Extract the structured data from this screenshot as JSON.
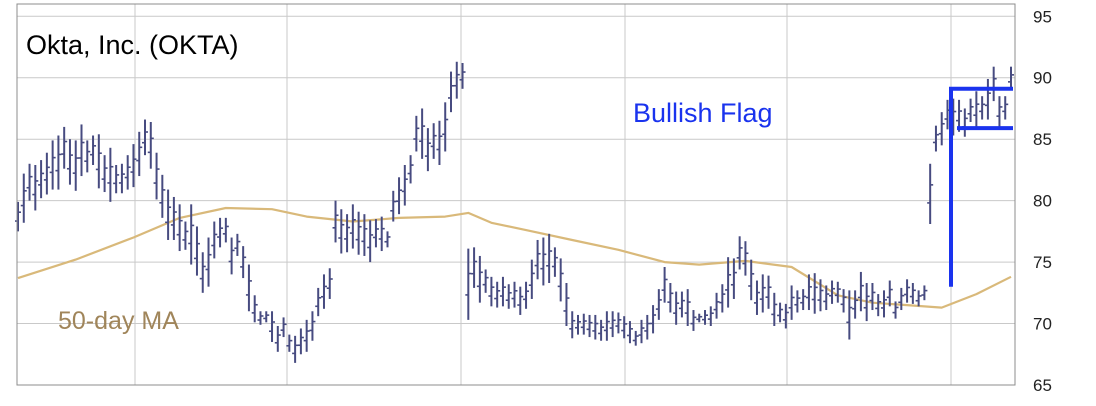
{
  "chart_data": {
    "type": "ohlc",
    "title": "Okta, Inc. (OKTA)",
    "y_axis": {
      "ticks": [
        65,
        70,
        75,
        80,
        85,
        90,
        95
      ],
      "ylim": [
        65,
        96
      ],
      "position": "right"
    },
    "grid": true,
    "num_bars": 173,
    "bars": [
      [
        77.5,
        79.9
      ],
      [
        78.2,
        82.2
      ],
      [
        80.0,
        83.0
      ],
      [
        79.2,
        82.9
      ],
      [
        80.2,
        83.3
      ],
      [
        80.5,
        83.9
      ],
      [
        80.9,
        84.9
      ],
      [
        80.9,
        85.3
      ],
      [
        82.6,
        86.0
      ],
      [
        81.3,
        85.0
      ],
      [
        80.8,
        84.9
      ],
      [
        82.0,
        86.2
      ],
      [
        82.3,
        84.9
      ],
      [
        82.9,
        85.3
      ],
      [
        81.0,
        85.4
      ],
      [
        80.7,
        83.7
      ],
      [
        79.9,
        84.3
      ],
      [
        80.6,
        82.9
      ],
      [
        80.6,
        83.0
      ],
      [
        80.9,
        83.7
      ],
      [
        81.1,
        84.6
      ],
      [
        82.0,
        85.6
      ],
      [
        83.7,
        86.6
      ],
      [
        82.6,
        86.4
      ],
      [
        80.1,
        83.9
      ],
      [
        78.6,
        82.1
      ],
      [
        76.8,
        80.9
      ],
      [
        76.8,
        80.3
      ],
      [
        75.9,
        79.7
      ],
      [
        76.0,
        78.3
      ],
      [
        74.8,
        79.7
      ],
      [
        73.9,
        77.9
      ],
      [
        72.5,
        75.8
      ],
      [
        73.0,
        77.0
      ],
      [
        75.3,
        78.3
      ],
      [
        76.2,
        78.6
      ],
      [
        76.6,
        78.6
      ],
      [
        74.0,
        77.0
      ],
      [
        75.5,
        77.3
      ],
      [
        73.7,
        76.3
      ],
      [
        71.0,
        74.8
      ],
      [
        70.1,
        72.3
      ],
      [
        69.9,
        71.0
      ],
      [
        70.1,
        71.0
      ],
      [
        68.5,
        71.0
      ],
      [
        67.7,
        69.8
      ],
      [
        68.9,
        70.5
      ],
      [
        67.7,
        69.1
      ],
      [
        66.8,
        69.0
      ],
      [
        67.5,
        69.6
      ],
      [
        67.7,
        70.3
      ],
      [
        68.6,
        71.0
      ],
      [
        70.6,
        72.9
      ],
      [
        71.2,
        74.0
      ],
      [
        72.0,
        74.5
      ],
      [
        76.6,
        80.0
      ],
      [
        75.7,
        79.3
      ],
      [
        75.8,
        78.9
      ],
      [
        76.1,
        79.7
      ],
      [
        75.6,
        79.1
      ],
      [
        75.5,
        78.9
      ],
      [
        75.0,
        78.4
      ],
      [
        76.2,
        78.5
      ],
      [
        75.9,
        78.7
      ],
      [
        76.2,
        77.5
      ],
      [
        78.3,
        80.8
      ],
      [
        78.9,
        81.9
      ],
      [
        79.6,
        82.9
      ],
      [
        81.4,
        83.7
      ],
      [
        84.0,
        86.9
      ],
      [
        83.4,
        87.5
      ],
      [
        82.4,
        85.9
      ],
      [
        83.4,
        86.3
      ],
      [
        82.9,
        86.5
      ],
      [
        84.0,
        88.0
      ],
      [
        87.2,
        90.5
      ],
      [
        88.3,
        91.3
      ],
      [
        89.1,
        91.2
      ],
      [
        70.3,
        76.1
      ],
      [
        72.9,
        76.2
      ],
      [
        71.7,
        75.5
      ],
      [
        72.5,
        74.4
      ],
      [
        71.4,
        73.8
      ],
      [
        71.3,
        73.4
      ],
      [
        71.4,
        73.8
      ],
      [
        71.2,
        73.2
      ],
      [
        71.3,
        73.4
      ],
      [
        70.7,
        73.0
      ],
      [
        71.2,
        73.4
      ],
      [
        72.0,
        75.2
      ],
      [
        73.6,
        76.8
      ],
      [
        73.1,
        77.0
      ],
      [
        73.3,
        77.3
      ],
      [
        73.8,
        76.2
      ],
      [
        71.8,
        75.3
      ],
      [
        69.8,
        73.3
      ],
      [
        68.8,
        71.0
      ],
      [
        69.1,
        70.7
      ],
      [
        69.1,
        70.8
      ],
      [
        68.9,
        70.7
      ],
      [
        68.7,
        70.7
      ],
      [
        68.6,
        70.3
      ],
      [
        68.6,
        71.0
      ],
      [
        68.9,
        71.0
      ],
      [
        69.2,
        70.9
      ],
      [
        68.8,
        70.6
      ],
      [
        68.4,
        70.2
      ],
      [
        68.2,
        69.4
      ],
      [
        68.4,
        70.3
      ],
      [
        68.7,
        70.7
      ],
      [
        69.2,
        71.5
      ],
      [
        70.3,
        72.8
      ],
      [
        71.7,
        74.6
      ],
      [
        70.9,
        73.3
      ],
      [
        69.9,
        72.6
      ],
      [
        70.5,
        72.6
      ],
      [
        69.8,
        72.8
      ],
      [
        69.4,
        71.1
      ],
      [
        70.1,
        70.8
      ],
      [
        69.9,
        71.1
      ],
      [
        69.8,
        71.4
      ],
      [
        70.4,
        72.5
      ],
      [
        70.9,
        73.2
      ],
      [
        71.3,
        75.4
      ],
      [
        72.0,
        75.3
      ],
      [
        74.4,
        77.1
      ],
      [
        73.9,
        76.7
      ],
      [
        71.9,
        75.2
      ],
      [
        70.7,
        73.5
      ],
      [
        70.9,
        74.0
      ],
      [
        71.2,
        73.9
      ],
      [
        69.8,
        72.5
      ],
      [
        70.1,
        71.7
      ],
      [
        69.6,
        71.6
      ],
      [
        70.3,
        73.1
      ],
      [
        70.9,
        72.7
      ],
      [
        71.1,
        72.8
      ],
      [
        71.1,
        74.0
      ],
      [
        70.8,
        74.1
      ],
      [
        71.0,
        73.6
      ],
      [
        71.1,
        73.1
      ],
      [
        71.6,
        73.5
      ],
      [
        71.7,
        73.4
      ],
      [
        70.9,
        72.8
      ],
      [
        68.7,
        72.7
      ],
      [
        70.4,
        72.7
      ],
      [
        71.0,
        74.2
      ],
      [
        70.2,
        73.3
      ],
      [
        71.1,
        73.3
      ],
      [
        70.6,
        72.4
      ],
      [
        70.5,
        72.7
      ],
      [
        71.4,
        73.5
      ],
      [
        70.4,
        71.8
      ],
      [
        71.1,
        72.9
      ],
      [
        71.7,
        73.6
      ],
      [
        71.6,
        73.3
      ],
      [
        71.4,
        72.7
      ],
      [
        71.9,
        73.1
      ],
      [
        78.1,
        83.0
      ],
      [
        84.0,
        86.1
      ],
      [
        84.5,
        87.2
      ],
      [
        85.8,
        88.2
      ],
      [
        85.3,
        88.3
      ],
      [
        85.6,
        88.2
      ],
      [
        85.2,
        87.5
      ],
      [
        86.4,
        88.3
      ],
      [
        85.9,
        88.9
      ],
      [
        86.6,
        88.5
      ],
      [
        86.6,
        89.9
      ],
      [
        88.1,
        90.9
      ],
      [
        86.0,
        88.5
      ],
      [
        86.6,
        88.5
      ],
      [
        89.0,
        90.9
      ]
    ],
    "moving_average": {
      "name": "50-day MA",
      "points": [
        [
          0,
          73.7
        ],
        [
          10,
          75.2
        ],
        [
          20,
          77.0
        ],
        [
          28,
          78.6
        ],
        [
          36,
          79.4
        ],
        [
          44,
          79.3
        ],
        [
          50,
          78.7
        ],
        [
          58,
          78.3
        ],
        [
          66,
          78.6
        ],
        [
          74,
          78.7
        ],
        [
          78,
          79.0
        ],
        [
          82,
          78.2
        ],
        [
          88,
          77.6
        ],
        [
          96,
          76.8
        ],
        [
          104,
          76.0
        ],
        [
          112,
          75.0
        ],
        [
          118,
          74.8
        ],
        [
          126,
          75.1
        ],
        [
          134,
          74.6
        ],
        [
          142,
          72.3
        ],
        [
          148,
          71.7
        ],
        [
          154,
          71.5
        ],
        [
          160,
          71.3
        ],
        [
          166,
          72.4
        ],
        [
          172,
          73.8
        ]
      ]
    },
    "annotation": {
      "label": "Bullish Flag",
      "pole_bottom": 73.0,
      "flag_top": 89.1,
      "flag_bottom": 85.9
    }
  },
  "labels": {
    "ma_label": "50-day MA",
    "pattern_label": "Bullish Flag"
  },
  "colors": {
    "bars": "#474b80",
    "moving_average": "#d9b97a",
    "ma_label": "#a0855a",
    "annotation": "#1a33ee",
    "grid": "#c9c9c9",
    "frame": "#8c8c8c"
  }
}
